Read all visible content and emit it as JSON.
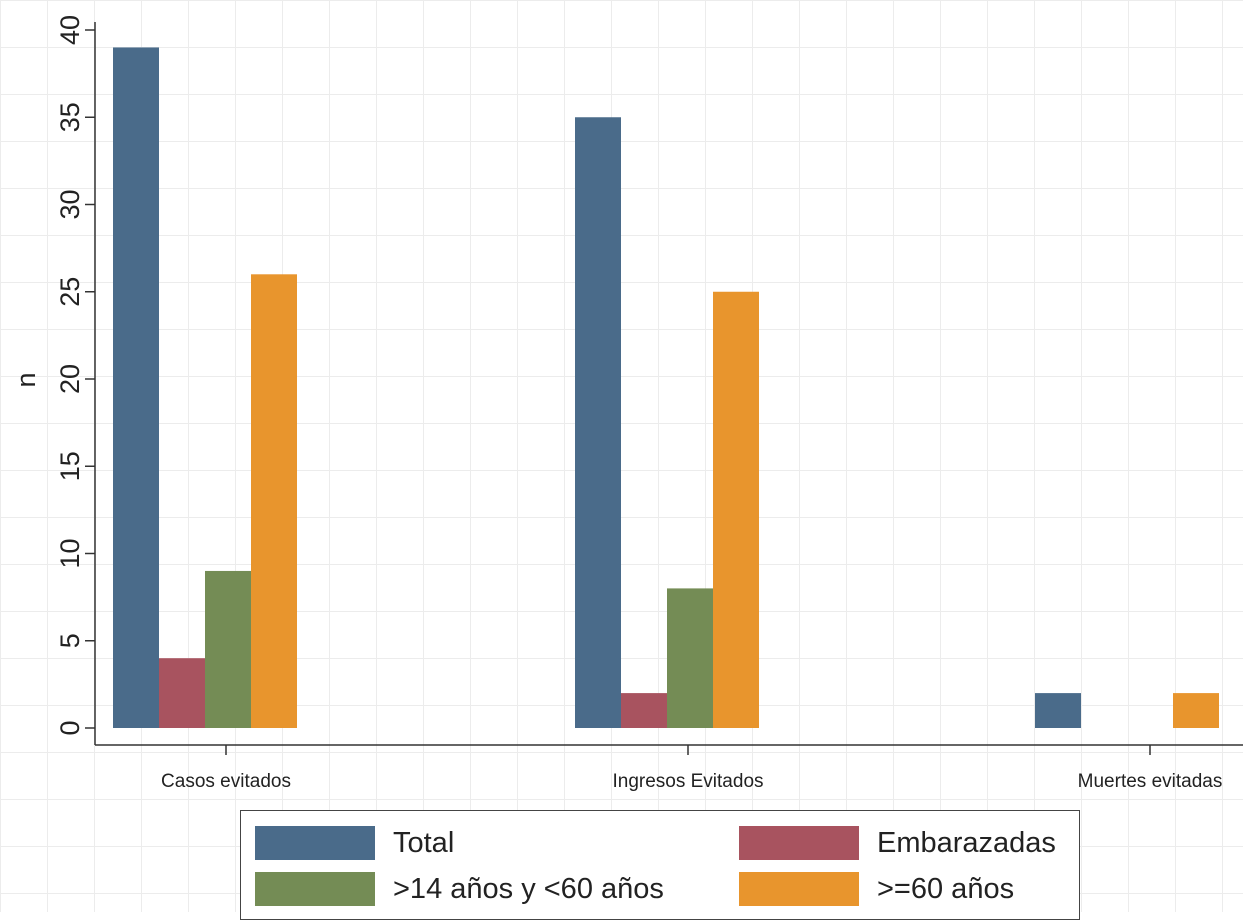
{
  "chart_data": {
    "type": "bar",
    "categories": [
      "Casos evitados",
      "Ingresos Evitados",
      "Muertes evitadas"
    ],
    "series": [
      {
        "name": "Total",
        "values": [
          39,
          35,
          2
        ],
        "color": "#4a6b8a"
      },
      {
        "name": "Embarazadas",
        "values": [
          4,
          2,
          0
        ],
        "color": "#a8535f"
      },
      {
        "name": ">14 años y <60 años",
        "values": [
          9,
          8,
          0
        ],
        "color": "#748c55"
      },
      {
        "name": ">=60 años",
        "values": [
          26,
          25,
          2
        ],
        "color": "#e8952d"
      }
    ],
    "title": "",
    "xlabel": "",
    "ylabel": "n",
    "ylim": [
      0,
      40
    ],
    "yticks": [
      0,
      5,
      10,
      15,
      20,
      25,
      30,
      35,
      40
    ],
    "grid": true,
    "legend_position": "bottom"
  }
}
